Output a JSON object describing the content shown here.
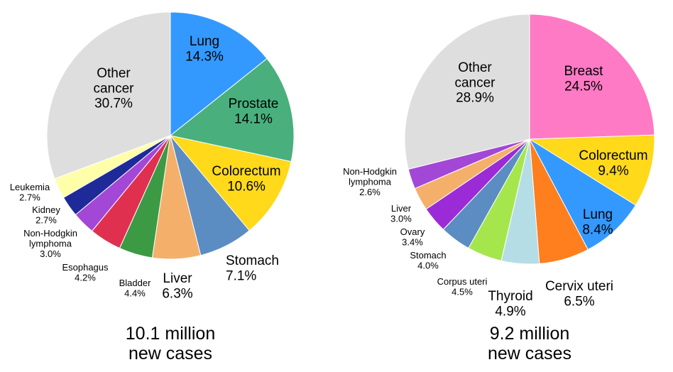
{
  "chart_data": [
    {
      "type": "pie",
      "caption": [
        "10.1 million",
        "new cases"
      ],
      "slices": [
        {
          "label": "Lung",
          "value": 14.3,
          "value_text": "14.3%",
          "color": "#3399FF"
        },
        {
          "label": "Prostate",
          "value": 14.1,
          "value_text": "14.1%",
          "color": "#49B07D"
        },
        {
          "label": "Colorectum",
          "value": 10.6,
          "value_text": "10.6%",
          "color": "#FFD91A"
        },
        {
          "label": "Stomach",
          "value": 7.1,
          "value_text": "7.1%",
          "color": "#5B8DC3"
        },
        {
          "label": "Liver",
          "value": 6.3,
          "value_text": "6.3%",
          "color": "#F4B06A"
        },
        {
          "label": "Bladder",
          "value": 4.4,
          "value_text": "4.4%",
          "color": "#3C9A45"
        },
        {
          "label": "Esophagus",
          "value": 4.2,
          "value_text": "4.2%",
          "color": "#E03050"
        },
        {
          "label": "Non-Hodgkin lymphoma",
          "value": 3.0,
          "value_text": "3.0%",
          "color": "#A347D6"
        },
        {
          "label": "Kidney",
          "value": 2.7,
          "value_text": "2.7%",
          "color": "#1F2A99"
        },
        {
          "label": "Leukemia",
          "value": 2.7,
          "value_text": "2.7%",
          "color": "#FFFFAA"
        },
        {
          "label": "Other cancer",
          "value": 30.7,
          "value_text": "30.7%",
          "color": "#DEDEDE"
        }
      ]
    },
    {
      "type": "pie",
      "caption": [
        "9.2 million",
        "new cases"
      ],
      "slices": [
        {
          "label": "Breast",
          "value": 24.5,
          "value_text": "24.5%",
          "color": "#FF7AC4"
        },
        {
          "label": "Colorectum",
          "value": 9.4,
          "value_text": "9.4%",
          "color": "#FFD91A"
        },
        {
          "label": "Lung",
          "value": 8.4,
          "value_text": "8.4%",
          "color": "#3399FF"
        },
        {
          "label": "Cervix uteri",
          "value": 6.5,
          "value_text": "6.5%",
          "color": "#FF7F1F"
        },
        {
          "label": "Thyroid",
          "value": 4.9,
          "value_text": "4.9%",
          "color": "#B5DDE6"
        },
        {
          "label": "Corpus uteri",
          "value": 4.5,
          "value_text": "4.5%",
          "color": "#A6E64D"
        },
        {
          "label": "Stomach",
          "value": 4.0,
          "value_text": "4.0%",
          "color": "#5B8DC3"
        },
        {
          "label": "Ovary",
          "value": 3.4,
          "value_text": "3.4%",
          "color": "#9B2BD6"
        },
        {
          "label": "Liver",
          "value": 3.0,
          "value_text": "3.0%",
          "color": "#F4B06A"
        },
        {
          "label": "Non-Hodgkin lymphoma",
          "value": 2.6,
          "value_text": "2.6%",
          "color": "#A347D6"
        },
        {
          "label": "Other cancer",
          "value": 28.9,
          "value_text": "28.9%",
          "color": "#DEDEDE"
        }
      ]
    }
  ]
}
